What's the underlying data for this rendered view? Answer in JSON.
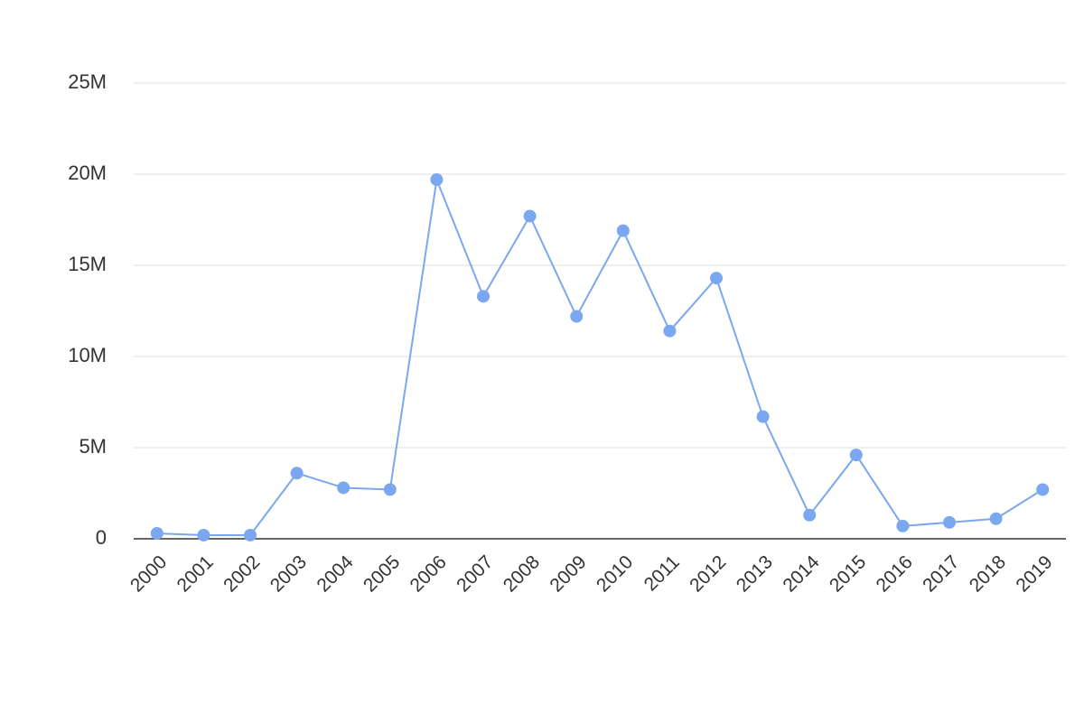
{
  "chart_data": {
    "type": "line",
    "categories": [
      "2000",
      "2001",
      "2002",
      "2003",
      "2004",
      "2005",
      "2006",
      "2007",
      "2008",
      "2009",
      "2010",
      "2011",
      "2012",
      "2013",
      "2014",
      "2015",
      "2016",
      "2017",
      "2018",
      "2019"
    ],
    "series": [
      {
        "color": "#7ba7f0",
        "values": [
          300000,
          200000,
          200000,
          3600000,
          2800000,
          2700000,
          19700000,
          13300000,
          17700000,
          12200000,
          16900000,
          11400000,
          14300000,
          6700000,
          1300000,
          4600000,
          700000,
          900000,
          1100000,
          2700000
        ]
      }
    ],
    "ylim": [
      0,
      25000000
    ],
    "yticks": [
      0,
      {
        "value": 5000000,
        "label": "5M"
      },
      {
        "value": 10000000,
        "label": "10M"
      },
      {
        "value": 15000000,
        "label": "15M"
      },
      {
        "value": 20000000,
        "label": "20M"
      },
      {
        "value": 25000000,
        "label": "25M"
      }
    ],
    "grid": true
  }
}
